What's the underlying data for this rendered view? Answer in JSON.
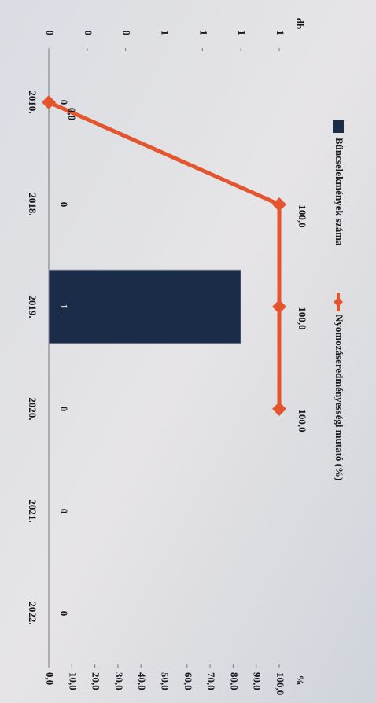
{
  "chart_data": {
    "type": "bar-line",
    "categories": [
      "2010.",
      "2018.",
      "2019.",
      "2020.",
      "2021.",
      "2022."
    ],
    "series": [
      {
        "name": "Bűncselekmények száma",
        "color": "#1b2c48",
        "type": "bar",
        "values": [
          0,
          0,
          1,
          0,
          0,
          0
        ],
        "value_labels": [
          "0",
          "0",
          "1",
          "0",
          "0",
          "0"
        ]
      },
      {
        "name": "Nyomozáseredményességi mutató (%)",
        "color": "#e4552e",
        "type": "line",
        "axis": "y2",
        "values": [
          0,
          100,
          100,
          100,
          null,
          null
        ],
        "value_labels": [
          "0,0",
          "100,0",
          "100,0",
          "100,0",
          null,
          null
        ]
      }
    ],
    "ylabel": "db",
    "y2label": "%",
    "ylim": [
      0,
      1.2
    ],
    "yticks": [
      {
        "value": 0,
        "label": "0"
      },
      {
        "value": 0.2,
        "label": "0"
      },
      {
        "value": 0.4,
        "label": "0"
      },
      {
        "value": 0.6,
        "label": "1"
      },
      {
        "value": 0.8,
        "label": "1"
      },
      {
        "value": 1.0,
        "label": "1"
      },
      {
        "value": 1.2,
        "label": "1"
      }
    ],
    "y2lim": [
      0,
      100
    ],
    "y2ticks": [
      {
        "value": 0,
        "label": "0,0"
      },
      {
        "value": 10,
        "label": "10,0"
      },
      {
        "value": 20,
        "label": "20,0"
      },
      {
        "value": 30,
        "label": "30,0"
      },
      {
        "value": 40,
        "label": "40,0"
      },
      {
        "value": 50,
        "label": "50,0"
      },
      {
        "value": 60,
        "label": "60,0"
      },
      {
        "value": 70,
        "label": "70,0"
      },
      {
        "value": 80,
        "label": "80,0"
      },
      {
        "value": 90,
        "label": "90,0"
      },
      {
        "value": 100,
        "label": "100,0"
      }
    ],
    "legend": "top"
  }
}
